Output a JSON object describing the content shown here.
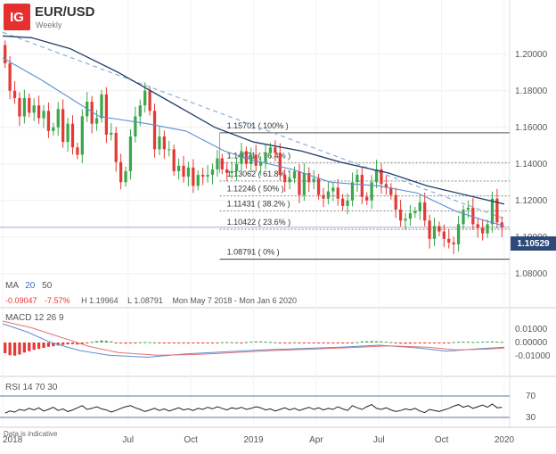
{
  "header": {
    "logo": "IG",
    "title": "EUR/USD",
    "subtitle": "Weekly"
  },
  "ma_legend": {
    "label": "MA",
    "p1": "20",
    "p2": "50"
  },
  "stats": {
    "change": "-0.09047",
    "change_pct": "-7.57%",
    "high": "H 1.19964",
    "low": "L 1.08791",
    "range": "Mon May 7 2018 - Mon Jan 6 2020"
  },
  "macd_legend": "MACD  12  26  9",
  "rsi_legend": "RSI  14  70  30",
  "current_price": "1.10529",
  "note": "Data is indicative",
  "colors": {
    "up": "#3aa74a",
    "down": "#e53935",
    "ma20": "#5c8fd0",
    "ma50": "#1f3f6b",
    "trendline": "#8bb0d6",
    "price_tag": "#2e4b78",
    "logo": "#e5302f"
  },
  "chart_data": [
    {
      "type": "candlestick",
      "title": "EUR/USD",
      "ylim": [
        1.075,
        1.215
      ],
      "y_ticks": [
        "1.20000",
        "1.18000",
        "1.16000",
        "1.14000",
        "1.12000",
        "1.10000",
        "1.08000"
      ],
      "y_tick_values": [
        1.2,
        1.18,
        1.16,
        1.14,
        1.12,
        1.1,
        1.08
      ],
      "x_ticks": [
        "2018",
        "Jul",
        "Oct",
        "2019",
        "Apr",
        "Jul",
        "Oct",
        "2020"
      ],
      "x_tick_weeks": [
        0,
        26,
        39,
        52,
        65,
        78,
        91,
        104
      ],
      "current_price": 1.10529,
      "weekly_closes": [
        1.195,
        1.18,
        1.176,
        1.166,
        1.176,
        1.168,
        1.172,
        1.165,
        1.169,
        1.158,
        1.16,
        1.17,
        1.152,
        1.162,
        1.149,
        1.145,
        1.166,
        1.174,
        1.162,
        1.165,
        1.178,
        1.156,
        1.157,
        1.141,
        1.13,
        1.136,
        1.155,
        1.166,
        1.172,
        1.18,
        1.169,
        1.148,
        1.155,
        1.148,
        1.148,
        1.136,
        1.139,
        1.133,
        1.138,
        1.128,
        1.134,
        1.133,
        1.134,
        1.137,
        1.143,
        1.137,
        1.135,
        1.136,
        1.14,
        1.147,
        1.14,
        1.145,
        1.139,
        1.141,
        1.146,
        1.149,
        1.146,
        1.134,
        1.13,
        1.132,
        1.136,
        1.123,
        1.135,
        1.13,
        1.132,
        1.123,
        1.121,
        1.125,
        1.127,
        1.121,
        1.117,
        1.12,
        1.13,
        1.134,
        1.122,
        1.12,
        1.13,
        1.137,
        1.129,
        1.127,
        1.123,
        1.115,
        1.109,
        1.11,
        1.113,
        1.114,
        1.119,
        1.109,
        1.099,
        1.106,
        1.103,
        1.099,
        1.097,
        1.096,
        1.107,
        1.115,
        1.116,
        1.107,
        1.105,
        1.102,
        1.107,
        1.121,
        1.108,
        1.1053
      ],
      "fibonacci": [
        {
          "label": "1.15701 ( 100% )",
          "value": 1.15701
        },
        {
          "label": "1.14071 ( 76.4% )",
          "value": 1.14071
        },
        {
          "label": "1.13062 ( 61.8% )",
          "value": 1.13062
        },
        {
          "label": "1.12246 ( 50% )",
          "value": 1.12246
        },
        {
          "label": "1.11431 ( 38.2% )",
          "value": 1.11431
        },
        {
          "label": "1.10422 ( 23.6% )",
          "value": 1.10422
        },
        {
          "label": "1.08791 ( 0% )",
          "value": 1.08791
        }
      ],
      "ma20": [
        [
          0,
          1.198
        ],
        [
          8,
          1.186
        ],
        [
          20,
          1.166
        ],
        [
          30,
          1.162
        ],
        [
          38,
          1.158
        ],
        [
          46,
          1.147
        ],
        [
          52,
          1.142
        ],
        [
          60,
          1.137
        ],
        [
          68,
          1.13
        ],
        [
          78,
          1.128
        ],
        [
          86,
          1.124
        ],
        [
          94,
          1.114
        ],
        [
          100,
          1.109
        ],
        [
          104,
          1.106
        ]
      ],
      "ma50": [
        [
          0,
          1.21
        ],
        [
          6,
          1.209
        ],
        [
          14,
          1.203
        ],
        [
          24,
          1.19
        ],
        [
          34,
          1.175
        ],
        [
          44,
          1.16
        ],
        [
          52,
          1.152
        ],
        [
          62,
          1.147
        ],
        [
          70,
          1.141
        ],
        [
          80,
          1.135
        ],
        [
          88,
          1.128
        ],
        [
          96,
          1.123
        ],
        [
          104,
          1.118
        ]
      ],
      "trendline": [
        [
          0,
          1.212
        ],
        [
          104,
          1.11
        ]
      ]
    },
    {
      "type": "macd",
      "params": [
        12,
        26,
        9
      ],
      "y_ticks": [
        "0.01000",
        "0.00000",
        "-0.01000"
      ],
      "y_tick_values": [
        0.01,
        0.0,
        -0.01
      ],
      "ylim": [
        -0.02,
        0.016
      ],
      "histogram": [
        -0.008,
        -0.0095,
        -0.0098,
        -0.009,
        -0.0075,
        -0.0065,
        -0.0055,
        -0.0048,
        -0.004,
        -0.0032,
        -0.0028,
        -0.0022,
        -0.0018,
        -0.0014,
        -0.0012,
        -0.0015,
        -0.001,
        -0.0005,
        0.0005,
        0.001,
        0.0015,
        0.0012,
        0.0008,
        -0.0003,
        -0.0006,
        -0.0008,
        -0.0004,
        -0.0002,
        0.0002,
        0.0003,
        0.0002,
        0.0001,
        -0.0002,
        -0.0003,
        -0.0004,
        -0.0003,
        -0.0005,
        -0.0006,
        -0.0004,
        -0.0005,
        -0.0006,
        -0.0004,
        -0.0003,
        -0.0002,
        -0.0001,
        0.0002,
        0.0003,
        0.0002,
        0.0001,
        -0.0001,
        0.0003,
        0.0006,
        0.0008,
        0.0007,
        0.0006,
        0.0004,
        0.0002,
        -0.0002,
        -0.0003,
        -0.0002,
        0.0001,
        -0.0003,
        -0.0004,
        -0.0005,
        -0.0006,
        -0.0006,
        -0.0005,
        -0.0005,
        -0.0004,
        -0.0004,
        -0.0005,
        -0.0003,
        -0.0002,
        0.0003,
        0.0008,
        0.0009,
        0.001,
        0.0009,
        0.0008,
        0.0006,
        0.0003,
        -0.0005,
        -0.0008,
        -0.0009,
        -0.0008,
        -0.0007,
        -0.0006,
        -0.0007,
        -0.0006,
        -0.0005,
        -0.0004,
        -0.0003,
        -0.0002,
        0.0003,
        0.0005,
        0.0006,
        0.0005,
        0.0004,
        0.0005,
        0.0006,
        0.0007,
        0.0007,
        0.0006,
        0.0005
      ],
      "macd_line": [
        [
          0,
          0.014
        ],
        [
          5,
          0.008
        ],
        [
          10,
          0.0
        ],
        [
          16,
          -0.006
        ],
        [
          22,
          -0.0095
        ],
        [
          30,
          -0.011
        ],
        [
          38,
          -0.0085
        ],
        [
          46,
          -0.007
        ],
        [
          54,
          -0.0055
        ],
        [
          62,
          -0.0045
        ],
        [
          70,
          -0.0035
        ],
        [
          78,
          -0.002
        ],
        [
          86,
          -0.004
        ],
        [
          92,
          -0.0065
        ],
        [
          98,
          -0.0048
        ],
        [
          104,
          -0.0035
        ]
      ],
      "signal_line": [
        [
          0,
          0.016
        ],
        [
          6,
          0.011
        ],
        [
          12,
          0.004
        ],
        [
          18,
          -0.003
        ],
        [
          24,
          -0.0075
        ],
        [
          32,
          -0.0095
        ],
        [
          40,
          -0.009
        ],
        [
          48,
          -0.0075
        ],
        [
          56,
          -0.006
        ],
        [
          64,
          -0.005
        ],
        [
          72,
          -0.0038
        ],
        [
          80,
          -0.0025
        ],
        [
          88,
          -0.0035
        ],
        [
          94,
          -0.0055
        ],
        [
          100,
          -0.005
        ],
        [
          104,
          -0.0042
        ]
      ]
    },
    {
      "type": "rsi",
      "params": [
        14,
        70,
        30
      ],
      "y_ticks": [
        "70",
        "30"
      ],
      "y_tick_values": [
        70,
        30
      ],
      "ylim": [
        20,
        80
      ],
      "values": [
        38,
        42,
        40,
        45,
        43,
        47,
        44,
        48,
        42,
        45,
        49,
        43,
        46,
        41,
        44,
        48,
        52,
        45,
        47,
        50,
        46,
        44,
        40,
        43,
        47,
        50,
        52,
        48,
        45,
        41,
        44,
        47,
        43,
        46,
        42,
        45,
        48,
        44,
        46,
        43,
        47,
        45,
        49,
        46,
        50,
        47,
        44,
        48,
        46,
        49,
        45,
        47,
        50,
        48,
        44,
        46,
        42,
        45,
        48,
        44,
        47,
        43,
        46,
        49,
        45,
        48,
        44,
        47,
        45,
        50,
        46,
        43,
        52,
        48,
        45,
        50,
        54,
        47,
        45,
        48,
        44,
        41,
        43,
        46,
        44,
        47,
        42,
        39,
        45,
        43,
        41,
        44,
        47,
        51,
        54,
        49,
        52,
        47,
        50,
        53,
        49,
        55,
        48,
        49
      ]
    }
  ]
}
